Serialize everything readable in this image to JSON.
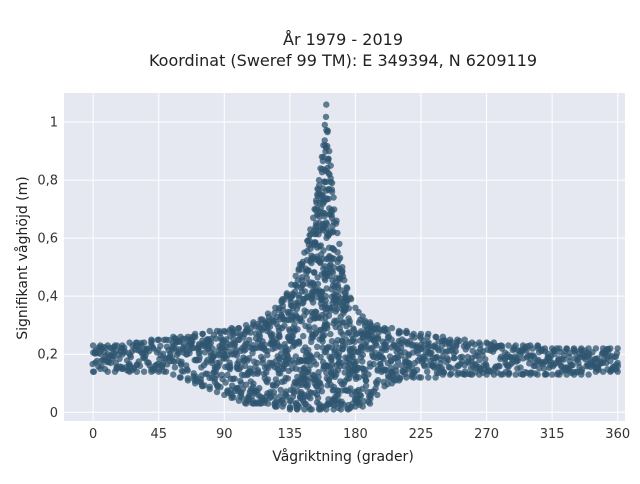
{
  "chart_data": {
    "type": "scatter",
    "title": [
      "År 1979 - 2019",
      "Koordinat (Sweref 99 TM): E 349394, N 6209119"
    ],
    "xlabel": "Vågriktning (grader)",
    "ylabel": "Signifikant våghöjd (m)",
    "xlim": [
      -20,
      365
    ],
    "ylim": [
      -0.03,
      1.1
    ],
    "xticks": [
      0,
      45,
      90,
      135,
      180,
      225,
      270,
      315,
      360
    ],
    "xtick_labels": [
      "0",
      "45",
      "90",
      "135",
      "180",
      "225",
      "270",
      "315",
      "360"
    ],
    "yticks": [
      0,
      0.2,
      0.4,
      0.6,
      0.8,
      1
    ],
    "ytick_labels": [
      "0",
      "0,2",
      "0,4",
      "0,6",
      "0,8",
      "1"
    ],
    "grid": true,
    "legend": "none",
    "colors": {
      "marker": "#2f5570",
      "plot_bg": "#e5e8f0",
      "grid": "#ffffff"
    },
    "series": [
      {
        "x": [
          0,
          5,
          10,
          15,
          20,
          25,
          30,
          35,
          40,
          45,
          50,
          55,
          60,
          65,
          70,
          75,
          80,
          85,
          90,
          95,
          100,
          105,
          110,
          115,
          120,
          125,
          130,
          133,
          136,
          139,
          142,
          145,
          147,
          149,
          151,
          152,
          153,
          154,
          155,
          156,
          157,
          158,
          159,
          160,
          161,
          162,
          163,
          164,
          165,
          167,
          169,
          171,
          174,
          177,
          180,
          185,
          190,
          195,
          200,
          205,
          210,
          215,
          220,
          225,
          230,
          235,
          240,
          245,
          250,
          255,
          260,
          265,
          270,
          275,
          280,
          285,
          290,
          295,
          300,
          305,
          310,
          315,
          320,
          325,
          330,
          335,
          340,
          345,
          350,
          355,
          360
        ],
        "y": [
          0.23,
          0.23,
          0.23,
          0.23,
          0.23,
          0.24,
          0.24,
          0.24,
          0.25,
          0.25,
          0.25,
          0.26,
          0.26,
          0.26,
          0.27,
          0.27,
          0.28,
          0.28,
          0.28,
          0.29,
          0.29,
          0.3,
          0.31,
          0.32,
          0.34,
          0.36,
          0.39,
          0.41,
          0.44,
          0.47,
          0.51,
          0.55,
          0.59,
          0.63,
          0.67,
          0.7,
          0.73,
          0.77,
          0.8,
          0.84,
          0.88,
          0.92,
          0.99,
          1.06,
          0.97,
          0.9,
          0.85,
          0.79,
          0.74,
          0.66,
          0.58,
          0.5,
          0.43,
          0.39,
          0.36,
          0.33,
          0.31,
          0.3,
          0.29,
          0.29,
          0.28,
          0.28,
          0.27,
          0.27,
          0.27,
          0.26,
          0.26,
          0.25,
          0.25,
          0.25,
          0.24,
          0.24,
          0.24,
          0.24,
          0.23,
          0.23,
          0.23,
          0.23,
          0.23,
          0.23,
          0.22,
          0.22,
          0.22,
          0.22,
          0.22,
          0.22,
          0.22,
          0.22,
          0.22,
          0.22,
          0.22
        ]
      },
      {
        "x": [
          0,
          5,
          10,
          15,
          20,
          25,
          30,
          35,
          40,
          45,
          50,
          55,
          60,
          65,
          70,
          75,
          80,
          85,
          90,
          95,
          100,
          105,
          110,
          115,
          120,
          125,
          130,
          135,
          140,
          145,
          150,
          155,
          160,
          165,
          170,
          175,
          180,
          185,
          190,
          195,
          200,
          205,
          210,
          215,
          220,
          225,
          230,
          235,
          240,
          245,
          250,
          255,
          260,
          265,
          270,
          275,
          280,
          285,
          290,
          295,
          300,
          305,
          310,
          315,
          320,
          325,
          330,
          335,
          340,
          345,
          350,
          355,
          360
        ],
        "y": [
          0.14,
          0.15,
          0.14,
          0.14,
          0.15,
          0.14,
          0.14,
          0.14,
          0.14,
          0.14,
          0.14,
          0.13,
          0.12,
          0.11,
          0.1,
          0.09,
          0.08,
          0.07,
          0.06,
          0.05,
          0.04,
          0.03,
          0.03,
          0.03,
          0.03,
          0.02,
          0.02,
          0.01,
          0.01,
          0.01,
          0.01,
          0.01,
          0.01,
          0.01,
          0.01,
          0.01,
          0.02,
          0.02,
          0.03,
          0.06,
          0.09,
          0.1,
          0.11,
          0.12,
          0.12,
          0.12,
          0.12,
          0.12,
          0.13,
          0.13,
          0.13,
          0.13,
          0.13,
          0.13,
          0.13,
          0.13,
          0.13,
          0.13,
          0.13,
          0.13,
          0.13,
          0.13,
          0.13,
          0.13,
          0.13,
          0.13,
          0.13,
          0.13,
          0.13,
          0.14,
          0.14,
          0.14,
          0.14
        ]
      }
    ]
  }
}
